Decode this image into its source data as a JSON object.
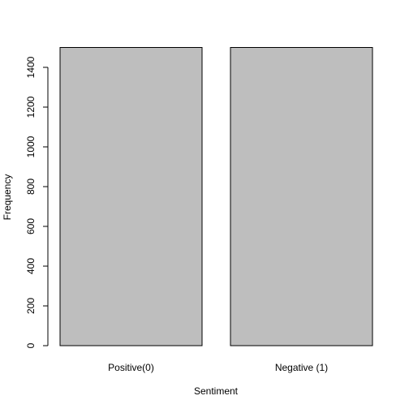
{
  "chart_data": {
    "type": "bar",
    "title": "",
    "xlabel": "Sentiment",
    "ylabel": "Frequency",
    "categories": [
      "Positive(0)",
      "Negative (1)"
    ],
    "values": [
      1500,
      1500
    ],
    "ylim": [
      0,
      1500
    ],
    "yticks": [
      0,
      200,
      400,
      600,
      800,
      1000,
      1200,
      1400
    ],
    "grid": false,
    "legend": "none",
    "bar_color": "#bebebe",
    "bar_border_color": "#000000"
  }
}
